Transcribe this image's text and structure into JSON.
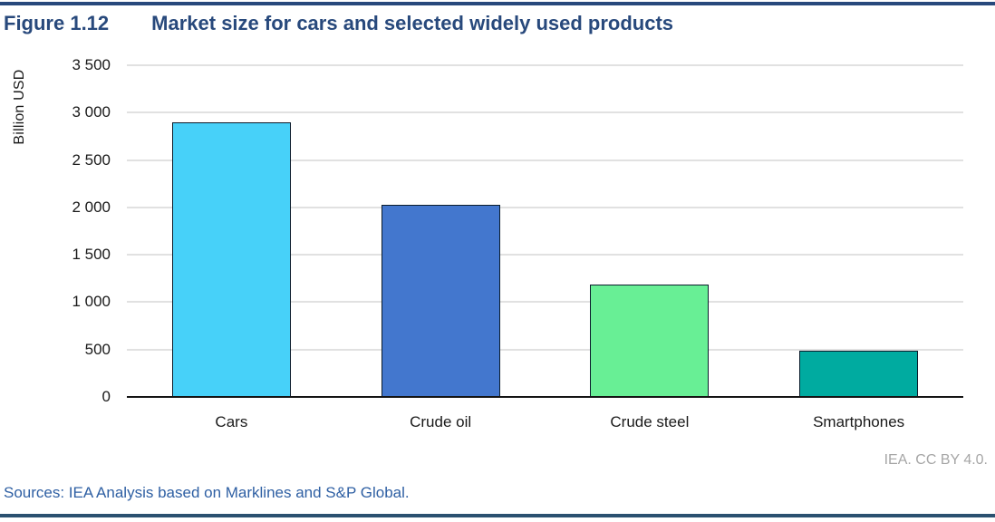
{
  "header": {
    "figure_label": "Figure 1.12",
    "title": "Market size for cars and selected widely used products"
  },
  "chart_data": {
    "type": "bar",
    "title": "Market size for cars and selected widely used products",
    "xlabel": "",
    "ylabel": "Billion USD",
    "categories": [
      "Cars",
      "Crude oil",
      "Crude steel",
      "Smartphones"
    ],
    "values": [
      2900,
      2030,
      1190,
      490
    ],
    "ylim": [
      0,
      3500
    ],
    "ytick_step": 500,
    "ytick_labels": [
      "0",
      "500",
      "1 000",
      "1 500",
      "2 000",
      "2 500",
      "3 000",
      "3 500"
    ],
    "grid": "horizontal",
    "legend": "none",
    "bar_colors": [
      "#47D1F9",
      "#4377CE",
      "#68EF95",
      "#00ABA0"
    ]
  },
  "footer": {
    "license": "IEA. CC BY 4.0.",
    "sources": "Sources: IEA Analysis based on Marklines and S&P Global."
  },
  "colors": {
    "accent_navy": "#28497C",
    "bottom_rule": "#2B5170",
    "gridline": "#E1E1E1",
    "axis_line": "#141414",
    "bar_border": "#0B1C2C",
    "license_gray": "#A6A6A6",
    "sources_blue": "#2E5FA3"
  }
}
